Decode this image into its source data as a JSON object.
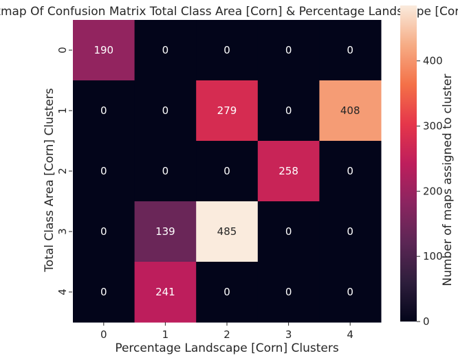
{
  "chart_data": {
    "type": "heatmap",
    "title": "Heatmap Of Confusion Matrix Total Class Area [Corn] & Percentage Landscape [Corn]",
    "xlabel": "Percentage Landscape [Corn] Clusters",
    "ylabel": "Total Class Area [Corn] Clusters",
    "x_categories": [
      "0",
      "1",
      "2",
      "3",
      "4"
    ],
    "y_categories": [
      "0",
      "1",
      "2",
      "3",
      "4"
    ],
    "values": [
      [
        190,
        0,
        0,
        0,
        0
      ],
      [
        0,
        0,
        279,
        0,
        408
      ],
      [
        0,
        0,
        0,
        258,
        0
      ],
      [
        0,
        139,
        485,
        0,
        0
      ],
      [
        0,
        241,
        0,
        0,
        0
      ]
    ],
    "colorbar": {
      "label": "Number of maps assigned to cluster",
      "range": [
        0,
        485
      ],
      "ticks": [
        0,
        100,
        200,
        300,
        400
      ],
      "colormap": "rocket"
    },
    "grid": false
  }
}
